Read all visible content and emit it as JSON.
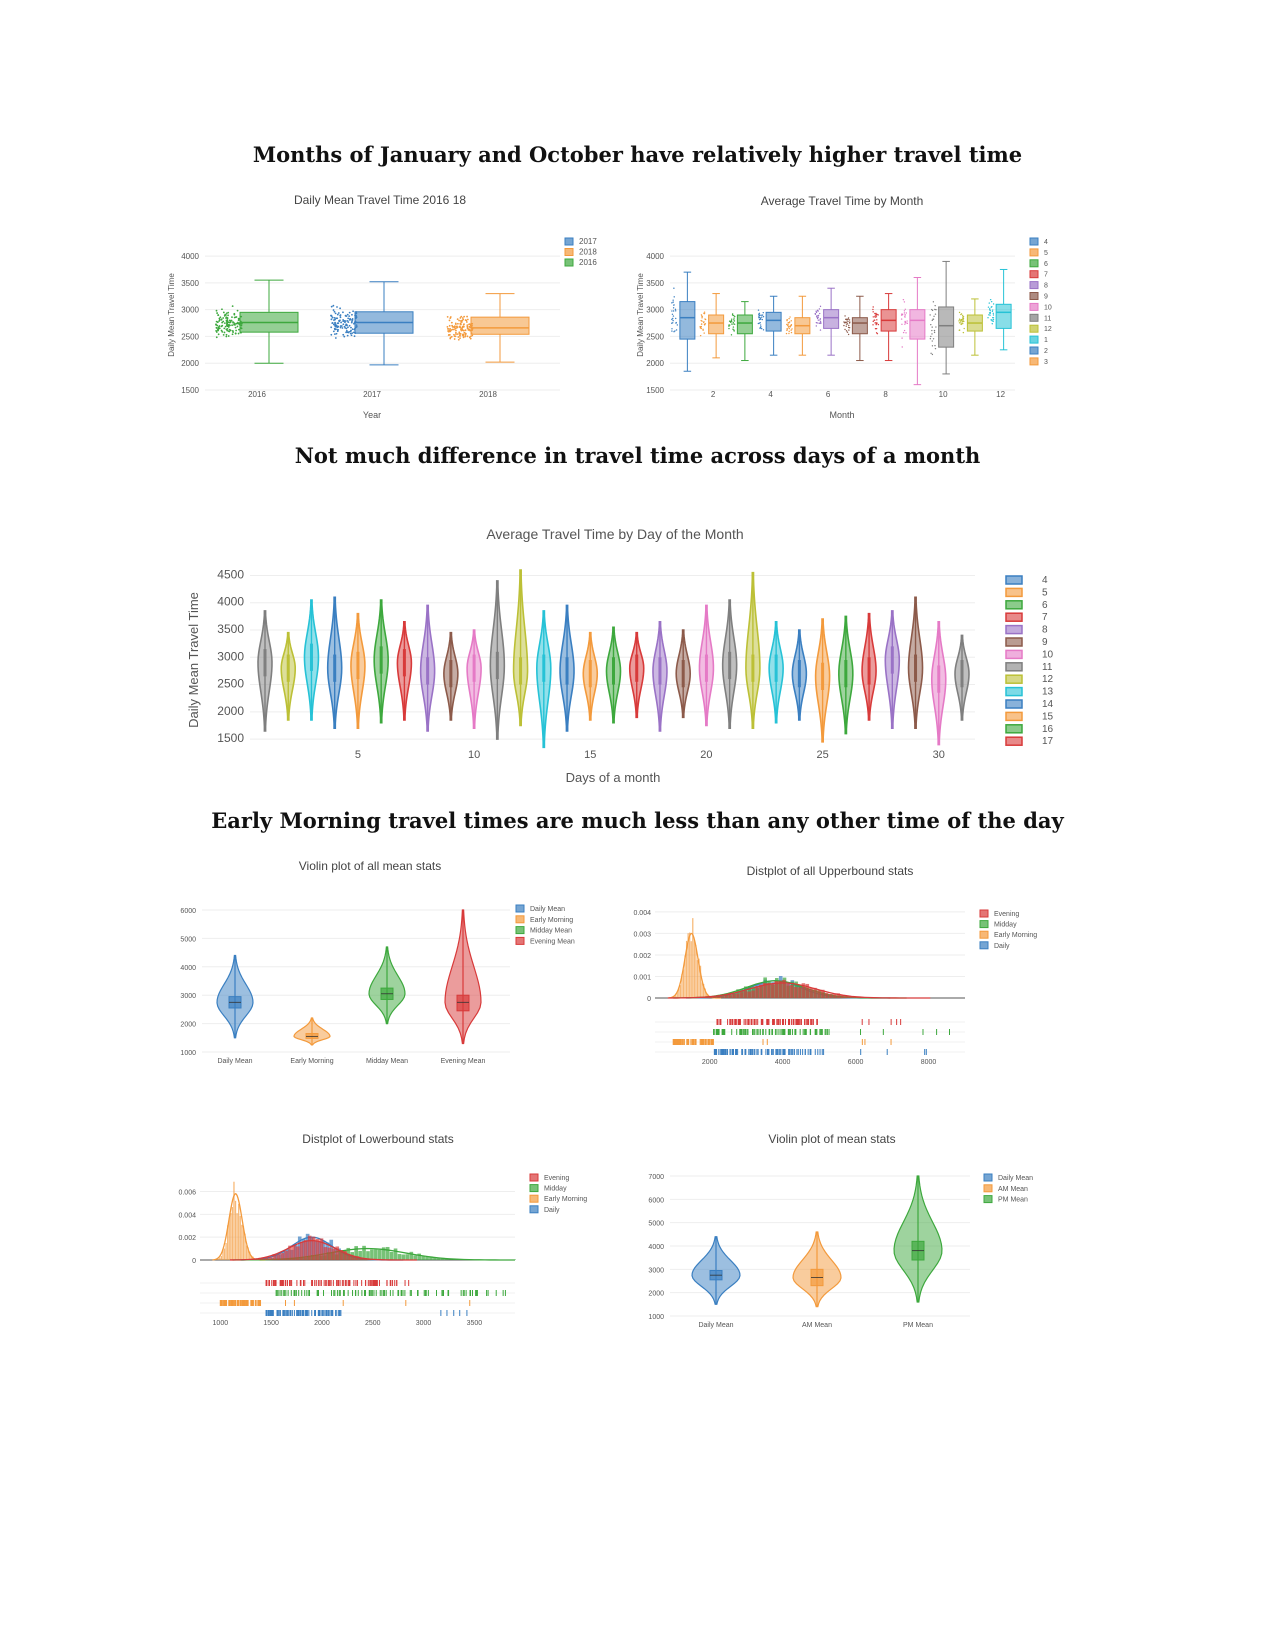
{
  "headings": {
    "h1": "Months of January and October have relatively higher travel time",
    "h2": "Not much difference in travel time across days of a month",
    "h3": "Early Morning travel times are much less than any other time of the day"
  },
  "colors": {
    "blue": "#3a7fc1",
    "orange": "#f39a3c",
    "green": "#3da83d",
    "red": "#d83a3a",
    "purple": "#9a72c6",
    "brown": "#8c5a4a",
    "pink": "#e57ac6",
    "gray": "#7f7f7f",
    "olive": "#bcc036",
    "cyan": "#26c2d6"
  },
  "chart_data": [
    {
      "id": "year_box",
      "type": "box",
      "title": "Daily Mean Travel Time 2016 18",
      "xlabel": "Year",
      "ylabel": "Daily Mean Travel Time",
      "ylim": [
        1500,
        4300
      ],
      "yticks": [
        1500,
        2000,
        2500,
        3000,
        3500,
        4000
      ],
      "legend": [
        "2017",
        "2018",
        "2016"
      ],
      "legend_position": "top-right",
      "series": [
        {
          "name": "2016",
          "category": "2016",
          "color": "#3da83d",
          "min": 2000,
          "q1": 2580,
          "median": 2760,
          "q3": 2950,
          "max": 3550
        },
        {
          "name": "2017",
          "category": "2017",
          "color": "#3a7fc1",
          "min": 1970,
          "q1": 2560,
          "median": 2760,
          "q3": 2960,
          "max": 3520
        },
        {
          "name": "2018",
          "category": "2018",
          "color": "#f39a3c",
          "min": 2020,
          "q1": 2540,
          "median": 2660,
          "q3": 2860,
          "max": 3300
        }
      ]
    },
    {
      "id": "month_box",
      "type": "box",
      "title": "Average Travel Time by Month",
      "xlabel": "Month",
      "ylabel": "Daily Mean Travel Time",
      "ylim": [
        1500,
        4300
      ],
      "yticks": [
        1500,
        2000,
        2500,
        3000,
        3500,
        4000
      ],
      "xticks": [
        "2",
        "4",
        "6",
        "8",
        "10",
        "12"
      ],
      "legend": [
        "4",
        "5",
        "6",
        "7",
        "8",
        "9",
        "10",
        "11",
        "12",
        "1",
        "2",
        "3"
      ],
      "legend_position": "top-right",
      "months": [
        {
          "m": 1,
          "color": "#3a7fc1",
          "min": 1850,
          "q1": 2450,
          "median": 2850,
          "q3": 3150,
          "max": 3700
        },
        {
          "m": 2,
          "color": "#f39a3c",
          "min": 2100,
          "q1": 2550,
          "median": 2750,
          "q3": 2900,
          "max": 3300
        },
        {
          "m": 3,
          "color": "#3da83d",
          "min": 2050,
          "q1": 2550,
          "median": 2750,
          "q3": 2900,
          "max": 3150
        },
        {
          "m": 4,
          "color": "#3a7fc1",
          "min": 2150,
          "q1": 2600,
          "median": 2800,
          "q3": 2950,
          "max": 3250
        },
        {
          "m": 5,
          "color": "#f39a3c",
          "min": 2150,
          "q1": 2550,
          "median": 2700,
          "q3": 2850,
          "max": 3250
        },
        {
          "m": 6,
          "color": "#9a72c6",
          "min": 2150,
          "q1": 2650,
          "median": 2850,
          "q3": 3000,
          "max": 3400
        },
        {
          "m": 7,
          "color": "#8c5a4a",
          "min": 2050,
          "q1": 2550,
          "median": 2750,
          "q3": 2850,
          "max": 3250
        },
        {
          "m": 8,
          "color": "#d83a3a",
          "min": 2050,
          "q1": 2600,
          "median": 2800,
          "q3": 3000,
          "max": 3300
        },
        {
          "m": 9,
          "color": "#e57ac6",
          "min": 1600,
          "q1": 2450,
          "median": 2800,
          "q3": 3000,
          "max": 3600
        },
        {
          "m": 10,
          "color": "#7f7f7f",
          "min": 1800,
          "q1": 2300,
          "median": 2700,
          "q3": 3050,
          "max": 3900
        },
        {
          "m": 11,
          "color": "#bcc036",
          "min": 2150,
          "q1": 2600,
          "median": 2750,
          "q3": 2900,
          "max": 3200
        },
        {
          "m": 12,
          "color": "#26c2d6",
          "min": 2250,
          "q1": 2650,
          "median": 2950,
          "q3": 3100,
          "max": 3750
        }
      ]
    },
    {
      "id": "day_violin",
      "type": "violin",
      "title": "Average Travel Time by Day of the Month",
      "xlabel": "Days of a month",
      "ylabel": "Daily Mean Travel Time",
      "ylim": [
        1300,
        4600
      ],
      "yticks": [
        1500,
        2000,
        2500,
        3000,
        3500,
        4000,
        4500
      ],
      "xticks": [
        5,
        10,
        15,
        20,
        25,
        30
      ],
      "legend": [
        "4",
        "5",
        "6",
        "7",
        "8",
        "9",
        "10",
        "11",
        "12",
        "13",
        "14",
        "15",
        "16",
        "17"
      ],
      "legend_position": "right",
      "days": [
        {
          "d": 1,
          "min": 1650,
          "max": 3850,
          "mode": 2900
        },
        {
          "d": 2,
          "min": 1850,
          "max": 3450,
          "mode": 2800
        },
        {
          "d": 3,
          "min": 1850,
          "max": 4050,
          "mode": 3000
        },
        {
          "d": 4,
          "min": 1700,
          "max": 4100,
          "mode": 2800
        },
        {
          "d": 5,
          "min": 1700,
          "max": 3800,
          "mode": 2850
        },
        {
          "d": 6,
          "min": 1800,
          "max": 4050,
          "mode": 2950
        },
        {
          "d": 7,
          "min": 1850,
          "max": 3650,
          "mode": 2900
        },
        {
          "d": 8,
          "min": 1650,
          "max": 3950,
          "mode": 2750
        },
        {
          "d": 9,
          "min": 1850,
          "max": 3450,
          "mode": 2700
        },
        {
          "d": 10,
          "min": 1700,
          "max": 3500,
          "mode": 2800
        },
        {
          "d": 11,
          "min": 1500,
          "max": 4400,
          "mode": 2850
        },
        {
          "d": 12,
          "min": 1750,
          "max": 4600,
          "mode": 2750
        },
        {
          "d": 13,
          "min": 1350,
          "max": 3850,
          "mode": 2800
        },
        {
          "d": 14,
          "min": 1650,
          "max": 3950,
          "mode": 2750
        },
        {
          "d": 15,
          "min": 1850,
          "max": 3450,
          "mode": 2700
        },
        {
          "d": 16,
          "min": 1800,
          "max": 3550,
          "mode": 2750
        },
        {
          "d": 17,
          "min": 1900,
          "max": 3450,
          "mode": 2800
        },
        {
          "d": 18,
          "min": 1650,
          "max": 3650,
          "mode": 2750
        },
        {
          "d": 19,
          "min": 1900,
          "max": 3500,
          "mode": 2700
        },
        {
          "d": 20,
          "min": 1750,
          "max": 3950,
          "mode": 2800
        },
        {
          "d": 21,
          "min": 1700,
          "max": 4050,
          "mode": 2850
        },
        {
          "d": 22,
          "min": 1700,
          "max": 4550,
          "mode": 2800
        },
        {
          "d": 23,
          "min": 1800,
          "max": 3650,
          "mode": 2800
        },
        {
          "d": 24,
          "min": 1850,
          "max": 3500,
          "mode": 2700
        },
        {
          "d": 25,
          "min": 1450,
          "max": 3700,
          "mode": 2650
        },
        {
          "d": 26,
          "min": 1600,
          "max": 3750,
          "mode": 2700
        },
        {
          "d": 27,
          "min": 1850,
          "max": 3800,
          "mode": 2750
        },
        {
          "d": 28,
          "min": 1700,
          "max": 3850,
          "mode": 2950
        },
        {
          "d": 29,
          "min": 1700,
          "max": 4100,
          "mode": 2800
        },
        {
          "d": 30,
          "min": 1400,
          "max": 3650,
          "mode": 2600
        },
        {
          "d": 31,
          "min": 1850,
          "max": 3400,
          "mode": 2700
        }
      ],
      "palette": [
        "#7f7f7f",
        "#bcc036",
        "#26c2d6",
        "#3a7fc1",
        "#f39a3c",
        "#3da83d",
        "#d83a3a",
        "#9a72c6",
        "#8c5a4a",
        "#e57ac6"
      ]
    },
    {
      "id": "mean_violin",
      "type": "violin",
      "title": "Violin plot of all mean stats",
      "categories": [
        "Daily Mean",
        "Early Morning",
        "Midday Mean",
        "Evening Mean"
      ],
      "legend": [
        "Daily Mean",
        "Early Morning",
        "Midday Mean",
        "Evening Mean"
      ],
      "legend_position": "top-right",
      "ylim": [
        1000,
        6000
      ],
      "yticks": [
        1000,
        2000,
        3000,
        4000,
        5000,
        6000
      ],
      "series": [
        {
          "name": "Daily Mean",
          "color": "#3a7fc1",
          "min": 1500,
          "max": 4400,
          "median": 2750,
          "q1": 2550,
          "q3": 2950
        },
        {
          "name": "Early Morning",
          "color": "#f39a3c",
          "min": 1250,
          "max": 2200,
          "median": 1550,
          "q1": 1480,
          "q3": 1650
        },
        {
          "name": "Midday Mean",
          "color": "#3da83d",
          "min": 2000,
          "max": 4700,
          "median": 3050,
          "q1": 2850,
          "q3": 3250
        },
        {
          "name": "Evening Mean",
          "color": "#d83a3a",
          "min": 1300,
          "max": 6000,
          "median": 2750,
          "q1": 2450,
          "q3": 3000
        }
      ]
    },
    {
      "id": "upper_dist",
      "type": "histogram",
      "title": "Distplot of all Upperbound stats",
      "legend": [
        "Evening",
        "Midday",
        "Early Morning",
        "Daily"
      ],
      "legend_position": "top-right",
      "yticks": [
        0,
        0.001,
        0.002,
        0.003,
        0.004
      ],
      "ytick_labels": [
        "0",
        "0.001",
        "0.002",
        "0.003",
        "0.004"
      ],
      "xticks": [
        2000,
        4000,
        6000,
        8000
      ],
      "xlim": [
        500,
        9000
      ],
      "series": [
        {
          "name": "Evening",
          "color": "#d83a3a",
          "peak_x": 4000,
          "peak_y": 0.0007,
          "spread": 900,
          "rug": [
            2200,
            5000
          ]
        },
        {
          "name": "Midday",
          "color": "#3da83d",
          "peak_x": 3800,
          "peak_y": 0.0008,
          "spread": 800,
          "rug": [
            2100,
            5300
          ]
        },
        {
          "name": "Early Morning",
          "color": "#f39a3c",
          "peak_x": 1500,
          "peak_y": 0.003,
          "spread": 180,
          "rug": [
            1000,
            2100
          ]
        },
        {
          "name": "Daily",
          "color": "#3a7fc1",
          "peak_x": 3800,
          "peak_y": 0.0008,
          "spread": 700,
          "rug": [
            2100,
            5100
          ]
        }
      ]
    },
    {
      "id": "lower_dist",
      "type": "histogram",
      "title": "Distplot of Lowerbound stats",
      "legend": [
        "Evening",
        "Midday",
        "Early Morning",
        "Daily"
      ],
      "legend_position": "top-right",
      "yticks": [
        0,
        0.002,
        0.004,
        0.006
      ],
      "ytick_labels": [
        "0",
        "0.002",
        "0.004",
        "0.006"
      ],
      "xticks": [
        1000,
        1500,
        2000,
        2500,
        3000,
        3500
      ],
      "xlim": [
        800,
        3900
      ],
      "series": [
        {
          "name": "Evening",
          "color": "#d83a3a",
          "peak_x": 1900,
          "peak_y": 0.0017,
          "spread": 230,
          "rug": [
            1450,
            2700
          ]
        },
        {
          "name": "Midday",
          "color": "#3da83d",
          "peak_x": 2450,
          "peak_y": 0.001,
          "spread": 380,
          "rug": [
            1550,
            3550
          ]
        },
        {
          "name": "Early Morning",
          "color": "#f39a3c",
          "peak_x": 1150,
          "peak_y": 0.0058,
          "spread": 65,
          "rug": [
            1000,
            1400
          ]
        },
        {
          "name": "Daily",
          "color": "#3a7fc1",
          "peak_x": 1900,
          "peak_y": 0.002,
          "spread": 200,
          "rug": [
            1450,
            2200
          ]
        }
      ]
    },
    {
      "id": "ampm_violin",
      "type": "violin",
      "title": "Violin plot of mean stats",
      "categories": [
        "Daily Mean",
        "AM Mean",
        "PM Mean"
      ],
      "legend": [
        "Daily Mean",
        "AM Mean",
        "PM Mean"
      ],
      "legend_position": "top-right",
      "ylim": [
        1000,
        7000
      ],
      "yticks": [
        1000,
        2000,
        3000,
        4000,
        5000,
        6000,
        7000
      ],
      "series": [
        {
          "name": "Daily Mean",
          "color": "#3a7fc1",
          "min": 1500,
          "max": 4400,
          "median": 2750,
          "q1": 2550,
          "q3": 2950
        },
        {
          "name": "AM Mean",
          "color": "#f39a3c",
          "min": 1400,
          "max": 4600,
          "median": 2650,
          "q1": 2300,
          "q3": 3000
        },
        {
          "name": "PM Mean",
          "color": "#3da83d",
          "min": 1600,
          "max": 7000,
          "median": 3800,
          "q1": 3400,
          "q3": 4200
        }
      ]
    }
  ]
}
